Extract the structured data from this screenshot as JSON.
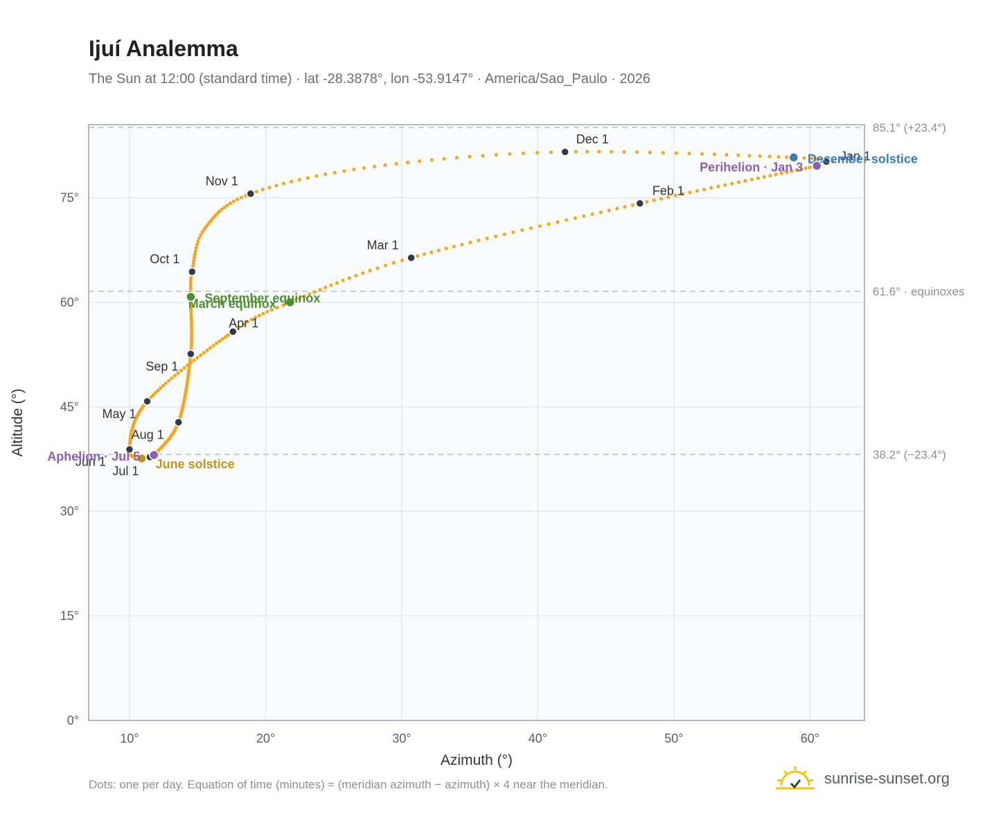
{
  "title": "Ijuí Analemma",
  "subtitle": "The Sun at 12:00 (standard time) · lat -28.3878°, lon -53.9147° · America/Sao_Paulo · 2026",
  "footnote": "Dots: one per day. Equation of time (minutes) ≈ (meridian azimuth − azimuth) × 4 near the meridian.",
  "brand": {
    "name": "sunrise-sunset.org",
    "icon": "sun-logo-icon"
  },
  "colors": {
    "path": "#f5a623",
    "month_marker": "#333a44",
    "equinox": "#4e8f2f",
    "june_solstice": "#c8911a",
    "december_solstice": "#3a7abd",
    "apsis": "#8a60b0",
    "reference_line": "#b9c2cc",
    "grid": "#e4e8ee",
    "plot_bg": "#f9fbfd",
    "frame": "#9aa5b1"
  },
  "chart_data": {
    "type": "scatter",
    "xlabel": "Azimuth (°)",
    "ylabel": "Altitude (°)",
    "xlim": [
      7,
      64
    ],
    "ylim": [
      0,
      85.5
    ],
    "x_ticks": [
      10,
      20,
      30,
      40,
      50,
      60
    ],
    "x_tick_labels": [
      "10°",
      "20°",
      "30°",
      "40°",
      "50°",
      "60°"
    ],
    "y_ticks": [
      0,
      15,
      30,
      45,
      60,
      75
    ],
    "y_tick_labels": [
      "0°",
      "15°",
      "30°",
      "45°",
      "60°",
      "75°"
    ],
    "grid": true,
    "month_markers": [
      {
        "label": "Jan 1",
        "x": 61.2,
        "y": 80.2
      },
      {
        "label": "Feb 1",
        "x": 47.5,
        "y": 74.2
      },
      {
        "label": "Mar 1",
        "x": 30.7,
        "y": 66.4
      },
      {
        "label": "Apr 1",
        "x": 17.6,
        "y": 55.8
      },
      {
        "label": "May 1",
        "x": 11.3,
        "y": 45.8
      },
      {
        "label": "Jun 1",
        "x": 10.0,
        "y": 38.9
      },
      {
        "label": "Jul 1",
        "x": 11.5,
        "y": 37.8
      },
      {
        "label": "Aug 1",
        "x": 13.6,
        "y": 42.8
      },
      {
        "label": "Sep 1",
        "x": 14.5,
        "y": 52.6
      },
      {
        "label": "Oct 1",
        "x": 14.6,
        "y": 64.4
      },
      {
        "label": "Nov 1",
        "x": 18.9,
        "y": 75.6
      },
      {
        "label": "Dec 1",
        "x": 42.0,
        "y": 81.6
      }
    ],
    "path_anchors": [
      {
        "day": 1,
        "x": 61.2,
        "y": 80.2
      },
      {
        "day": 3,
        "x": 60.5,
        "y": 79.6
      },
      {
        "day": 32,
        "x": 47.5,
        "y": 74.2
      },
      {
        "day": 60,
        "x": 30.7,
        "y": 66.4
      },
      {
        "day": 79,
        "x": 21.8,
        "y": 60.0
      },
      {
        "day": 91,
        "x": 17.6,
        "y": 55.8
      },
      {
        "day": 121,
        "x": 11.3,
        "y": 45.8
      },
      {
        "day": 152,
        "x": 10.0,
        "y": 38.9
      },
      {
        "day": 172,
        "x": 10.9,
        "y": 37.6
      },
      {
        "day": 182,
        "x": 11.5,
        "y": 37.8
      },
      {
        "day": 186,
        "x": 11.8,
        "y": 38.1
      },
      {
        "day": 213,
        "x": 13.6,
        "y": 42.8
      },
      {
        "day": 244,
        "x": 14.5,
        "y": 52.6
      },
      {
        "day": 266,
        "x": 14.5,
        "y": 60.8
      },
      {
        "day": 274,
        "x": 14.6,
        "y": 64.4
      },
      {
        "day": 288,
        "x": 15.5,
        "y": 70.5
      },
      {
        "day": 305,
        "x": 18.9,
        "y": 75.6
      },
      {
        "day": 320,
        "x": 28.0,
        "y": 79.5
      },
      {
        "day": 335,
        "x": 42.0,
        "y": 81.6
      },
      {
        "day": 355,
        "x": 58.8,
        "y": 80.8
      },
      {
        "day": 366,
        "x": 61.2,
        "y": 80.2
      }
    ],
    "events": [
      {
        "label": "March equinox",
        "x": 21.8,
        "y": 60.0,
        "kind": "equinox"
      },
      {
        "label": "September equinox",
        "x": 14.5,
        "y": 60.8,
        "kind": "equinox"
      },
      {
        "label": "June solstice",
        "x": 10.9,
        "y": 37.6,
        "kind": "june_solstice"
      },
      {
        "label": "December solstice",
        "x": 58.8,
        "y": 80.8,
        "kind": "december_solstice"
      },
      {
        "label": "Perihelion · Jan 3",
        "x": 60.5,
        "y": 79.6,
        "kind": "apsis"
      },
      {
        "label": "Aphelion · Jul 5",
        "x": 11.8,
        "y": 38.1,
        "kind": "apsis"
      }
    ],
    "reference_lines": [
      {
        "y": 85.1,
        "label": "85.1° (+23.4°)"
      },
      {
        "y": 61.6,
        "label": "61.6° · equinoxes"
      },
      {
        "y": 38.2,
        "label": "38.2° (−23.4°)"
      }
    ]
  }
}
